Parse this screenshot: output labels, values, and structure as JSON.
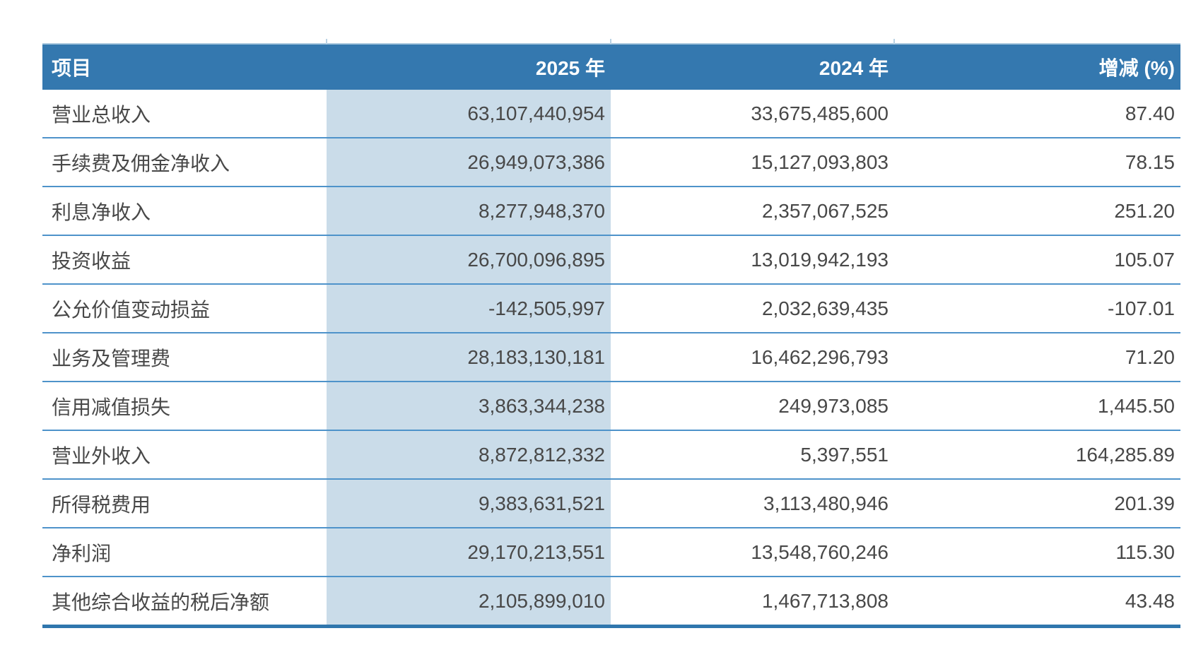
{
  "table": {
    "headers": {
      "item": "项目",
      "y2025": "2025 年",
      "y2024": "2024 年",
      "change": "增减 (%)"
    },
    "rows": [
      {
        "item": "营业总收入",
        "y2025": "63,107,440,954",
        "y2024": "33,675,485,600",
        "change": "87.40"
      },
      {
        "item": "手续费及佣金净收入",
        "y2025": "26,949,073,386",
        "y2024": "15,127,093,803",
        "change": "78.15"
      },
      {
        "item": "利息净收入",
        "y2025": "8,277,948,370",
        "y2024": "2,357,067,525",
        "change": "251.20"
      },
      {
        "item": "投资收益",
        "y2025": "26,700,096,895",
        "y2024": "13,019,942,193",
        "change": "105.07"
      },
      {
        "item": "公允价值变动损益",
        "y2025": "-142,505,997",
        "y2024": "2,032,639,435",
        "change": "-107.01"
      },
      {
        "item": "业务及管理费",
        "y2025": "28,183,130,181",
        "y2024": "16,462,296,793",
        "change": "71.20"
      },
      {
        "item": "信用减值损失",
        "y2025": "3,863,344,238",
        "y2024": "249,973,085",
        "change": "1,445.50"
      },
      {
        "item": "营业外收入",
        "y2025": "8,872,812,332",
        "y2024": "5,397,551",
        "change": "164,285.89"
      },
      {
        "item": "所得税费用",
        "y2025": "9,383,631,521",
        "y2024": "3,113,480,946",
        "change": "201.39"
      },
      {
        "item": "净利润",
        "y2025": "29,170,213,551",
        "y2024": "13,548,760,246",
        "change": "115.30"
      },
      {
        "item": "其他综合收益的税后净额",
        "y2025": "2,105,899,010",
        "y2024": "1,467,713,808",
        "change": "43.48"
      }
    ]
  },
  "colors": {
    "header_bg": "#3478af",
    "header_text": "#ffffff",
    "highlight_column_bg": "#cadce9",
    "row_border": "#4e93ca",
    "bottom_border": "#2f76ad",
    "body_text": "#484848"
  }
}
